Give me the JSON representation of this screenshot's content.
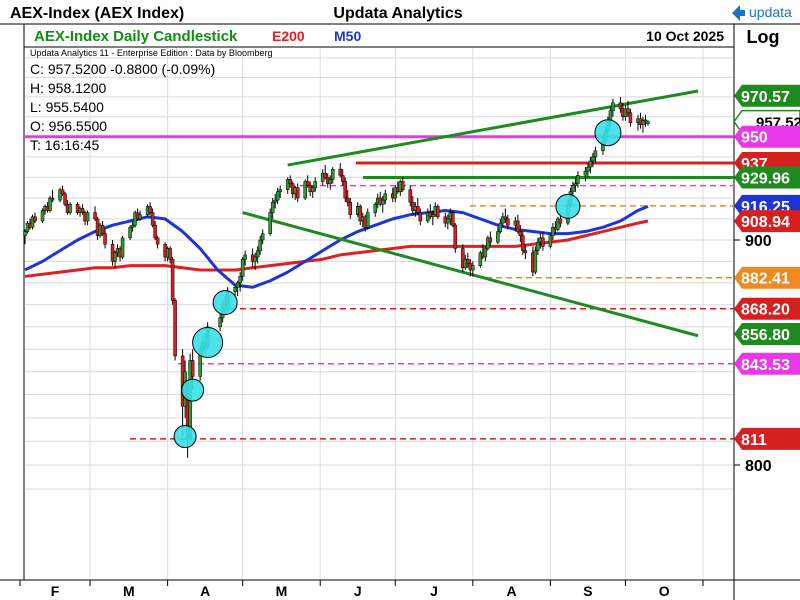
{
  "header": {
    "symbol": "AEX-Index (AEX Index)",
    "provider": "Updata Analytics",
    "logo_text": "updata"
  },
  "chart_info": {
    "title": "AEX-Index Daily Candlestick",
    "ma200_label": "E200",
    "ma50_label": "M50",
    "date": "10 Oct 2025",
    "scale": "Log",
    "edition": "Updata Analytics 11 - Enterprise Edition : Data by Bloomberg",
    "ohlc": {
      "close": "C: 957.5200  -0.8800 (-0.09%)",
      "high": "H: 958.1200",
      "low": "L: 955.5400",
      "open": "O: 956.5500",
      "time": "T: 16:16:45"
    }
  },
  "colors": {
    "up": "#2e9b2e",
    "down": "#d62020",
    "ma200": "#e02020",
    "ma50": "#1c35d6",
    "trend": "#1f8a1f",
    "magenta": "#e838e8",
    "orange": "#f08a1e",
    "cyan": "#38e0e8",
    "title_green": "#128c12",
    "logo_blue": "#1a73c8"
  },
  "chart_data": {
    "type": "candlestick",
    "title": "AEX-Index Daily Candlestick",
    "log_scale": true,
    "grid": true,
    "x_ticks": [
      "F",
      "M",
      "A",
      "M",
      "J",
      "J",
      "A",
      "S",
      "O"
    ],
    "y_ticks": [
      {
        "value": 900,
        "label": "900"
      },
      {
        "value": 800,
        "label": "800"
      }
    ],
    "price_levels": [
      {
        "value": 970.57,
        "label": "970.57",
        "color": "#1f8a1f",
        "line": "none"
      },
      {
        "value": 957.52,
        "label": "957.52",
        "color": "#1f8a1f",
        "line": "none",
        "current": true
      },
      {
        "value": 950,
        "label": "950",
        "color": "#e838e8",
        "line": "solid"
      },
      {
        "value": 937,
        "label": "937",
        "color": "#d62020",
        "line": "solid"
      },
      {
        "value": 929.96,
        "label": "929.96",
        "color": "#1f8a1f",
        "line": "solid"
      },
      {
        "value": 916.25,
        "label": "916.25",
        "color": "#1c35d6",
        "line": "none"
      },
      {
        "value": 908.94,
        "label": "908.94",
        "color": "#d62020",
        "line": "none"
      },
      {
        "value": 882.41,
        "label": "882.41",
        "color": "#f08a1e",
        "line": "dashed"
      },
      {
        "value": 868.2,
        "label": "868.20",
        "color": "#d62020",
        "line": "dashed"
      },
      {
        "value": 856.8,
        "label": "856.80",
        "color": "#1f8a1f",
        "line": "none"
      },
      {
        "value": 843.53,
        "label": "843.53",
        "color": "#e838e8",
        "line": "dashed"
      },
      {
        "value": 811,
        "label": "811",
        "color": "#d62020",
        "line": "dashed"
      }
    ],
    "extra_lines": [
      {
        "value": 926,
        "style": "dashed",
        "color": "#e838e8"
      },
      {
        "value": 916.25,
        "style": "dashed",
        "color": "#f08a1e"
      }
    ],
    "trendlines": [
      {
        "from": [
          "2025-05-19",
          936
        ],
        "to": [
          "2025-10-30",
          973
        ],
        "color": "#1f8a1f"
      },
      {
        "from": [
          "2025-05-01",
          913
        ],
        "to": [
          "2025-10-30",
          856
        ],
        "color": "#1f8a1f"
      }
    ],
    "circles": [
      "2025-04-08",
      "2025-04-11",
      "2025-04-17",
      "2025-04-24",
      "2025-09-08",
      "2025-09-24"
    ],
    "candles_raw": "02-03,902,905,898,904;02-04,904,909,903,908;02-05,908,910,905,906;02-06,906,912,905,911;02-07,911,913,908,909;02-10,909,915,908,914;02-11,914,917,912,916;02-12,916,918,913,914;02-13,914,921,913,920;02-14,920,924,918,919;02-17,919,925,918,924;02-18,924,926,921,922;02-19,922,923,916,917;02-20,917,919,912,913;02-21,913,918,912,917;02-24,917,918,912,913;02-25,913,916,911,915;02-26,915,917,912,913;02-27,913,914,907,909;02-28,909,914,907,913;03-03,913,916,909,910;03-04,910,911,900,902;03-05,902,908,901,907;03-06,907,909,902,903;03-07,903,905,896,898;03-10,898,900,888,890;03-11,890,895,887,894;03-12,894,898,892,896;03-13,896,897,890,892;03-14,892,902,891,901;03-17,901,907,900,906;03-18,906,909,904,907;03-19,907,914,906,913;03-20,913,915,909,910;03-21,910,914,909,912;03-24,912,917,911,916;03-25,916,918,912,913;03-26,913,915,906,907;03-27,907,909,900,901;03-28,901,902,896,898;03-31,898,899,890,892;04-01,892,897,890,896;04-02,896,897,889,891;04-03,891,892,870,872;04-04,872,873,845,847;04-07,847,850,812,825;04-08,825,845,820,840;04-09,832,836,803,811;04-10,811,848,810,845;04-11,845,850,832,838;04-14,838,852,836,850;04-15,850,856,847,853;04-16,853,857,848,851;04-17,851,862,850,860;04-22,860,866,858,864;04-23,864,872,862,870;04-24,870,874,866,868;04-25,868,878,867,876;04-28,876,879,873,878;04-29,878,881,874,880;04-30,880,885,876,883;05-01,883,892,881,891;05-02,891,895,888,893;05-05,893,896,887,890;05-06,890,894,886,892;05-07,892,897,889,895;05-08,895,902,893,900;05-09,900,905,898,903;05-12,903,915,902,913;05-13,913,920,910,918;05-14,918,922,915,919;05-15,919,925,917,923;05-16,923,926,920,924;05-19,924,930,922,929;05-20,929,931,925,927;05-21,927,928,920,922;05-22,922,926,919,925;05-23,925,927,918,920;05-26,920,929,919,928;05-27,928,931,925,926;05-28,926,928,921,923;05-29,923,926,920,925;05-30,925,930,923,928;06-02,928,934,926,932;06-03,932,936,929,930;06-04,930,932,925,927;06-05,927,931,924,929;06-06,929,935,927,934;06-09,934,937,930,931;06-10,931,934,926,928;06-11,928,930,918,920;06-12,920,924,916,918;06-13,918,920,910,912;06-16,912,918,911,916;06-17,916,917,907,909;06-18,909,913,906,911;06-19,911,912,904,906;06-20,906,915,905,913;06-23,913,918,911,917;06-24,917,922,915,920;06-25,920,923,916,917;06-26,917,921,913,919;06-27,919,924,917,922;06-30,922,925,918,920;07-01,920,926,918,925;07-02,925,928,922,923;07-03,923,929,921,928;07-04,928,930,923,924;07-07,924,926,916,918;07-08,918,921,912,914;07-09,914,918,911,916;07-10,916,920,912,913;07-11,913,915,907,909;07-14,909,915,908,913;07-15,913,917,910,911;07-16,911,914,907,912;07-17,912,918,911,916;07-18,916,917,910,911;07-21,911,913,906,908;07-22,908,912,905,910;07-23,910,915,907,913;07-24,913,914,906,907;07-25,907,908,894,896;07-28,896,898,885,887;07-29,887,893,886,891;07-30,891,894,887,889;07-31,889,891,883,886;08-01,886,890,883,888;08-04,888,895,887,894;08-05,894,898,891,892;08-06,892,897,890,896;08-07,896,902,895,901;08-08,901,904,897,899;08-11,899,906,898,904;08-12,904,910,903,908;08-13,908,913,906,911;08-14,911,915,908,910;08-15,910,912,905,907;08-18,907,911,904,909;08-19,909,912,903,904;08-20,904,907,899,902;08-21,902,904,893,895;08-22,895,898,891,894;08-25,894,897,883,885;08-26,885,897,884,895;08-27,895,901,893,899;08-28,899,903,896,901;08-29,901,904,895,897;09-01,897,903,896,902;09-02,902,908,900,906;09-03,906,909,903,905;09-04,905,911,904,910;09-05,910,913,906,908;09-08,908,919,907,917;09-09,917,925,915,923;09-10,923,928,920,926;09-11,926,930,923,927;09-12,927,933,925,931;09-15,931,935,928,933;09-16,933,937,930,935;09-17,935,940,932,938;09-18,938,942,935,940;09-19,940,945,937,943;09-22,943,950,941,948;09-23,948,955,946,953;09-24,953,960,951,958;09-25,958,965,955,963;09-26,963,969,960,967;09-29,967,970,962,964;09-30,964,967,958,960;10-01,960,966,958,964;10-02,964,968,960,962;10-03,962,964,955,957;10-06,957,961,953,959;10-07,959,962,954,956;10-08,956,960,952,958;10-09,958,961,955,958.4;10-10,956.55,958.12,955.54,957.52",
    "ma200_raw": "02-03,883;02-10,884;02-17,885;02-24,886;03-03,887;03-10,887;03-17,888;03-24,888;03-31,888;04-07,887;04-14,886;04-21,886;04-28,886;05-05,887;05-12,888;05-19,889;05-26,890;06-02,891;06-09,893;06-16,894;06-23,895;06-30,896;07-07,897;07-14,897;07-21,897;07-28,897;08-04,897;08-11,897;08-18,897;08-25,898;09-01,899;09-08,900;09-15,902;09-22,904;09-29,906;10-06,908;10-10,909",
    "ma50_raw": "02-03,886;02-10,890;02-17,895;02-24,900;03-03,904;03-10,907;03-17,909;03-24,911;03-31,910;04-07,904;04-14,896;04-21,886;04-28,879;05-05,878;05-12,881;05-19,885;05-26,890;06-02,895;06-09,900;06-16,904;06-23,907;06-30,910;07-07,912;07-14,913;07-21,914;07-28,913;08-04,910;08-11,907;08-18,905;08-25,904;09-01,903;09-08,903;09-15,904;09-22,906;09-29,909;10-06,914;10-10,916"
  }
}
